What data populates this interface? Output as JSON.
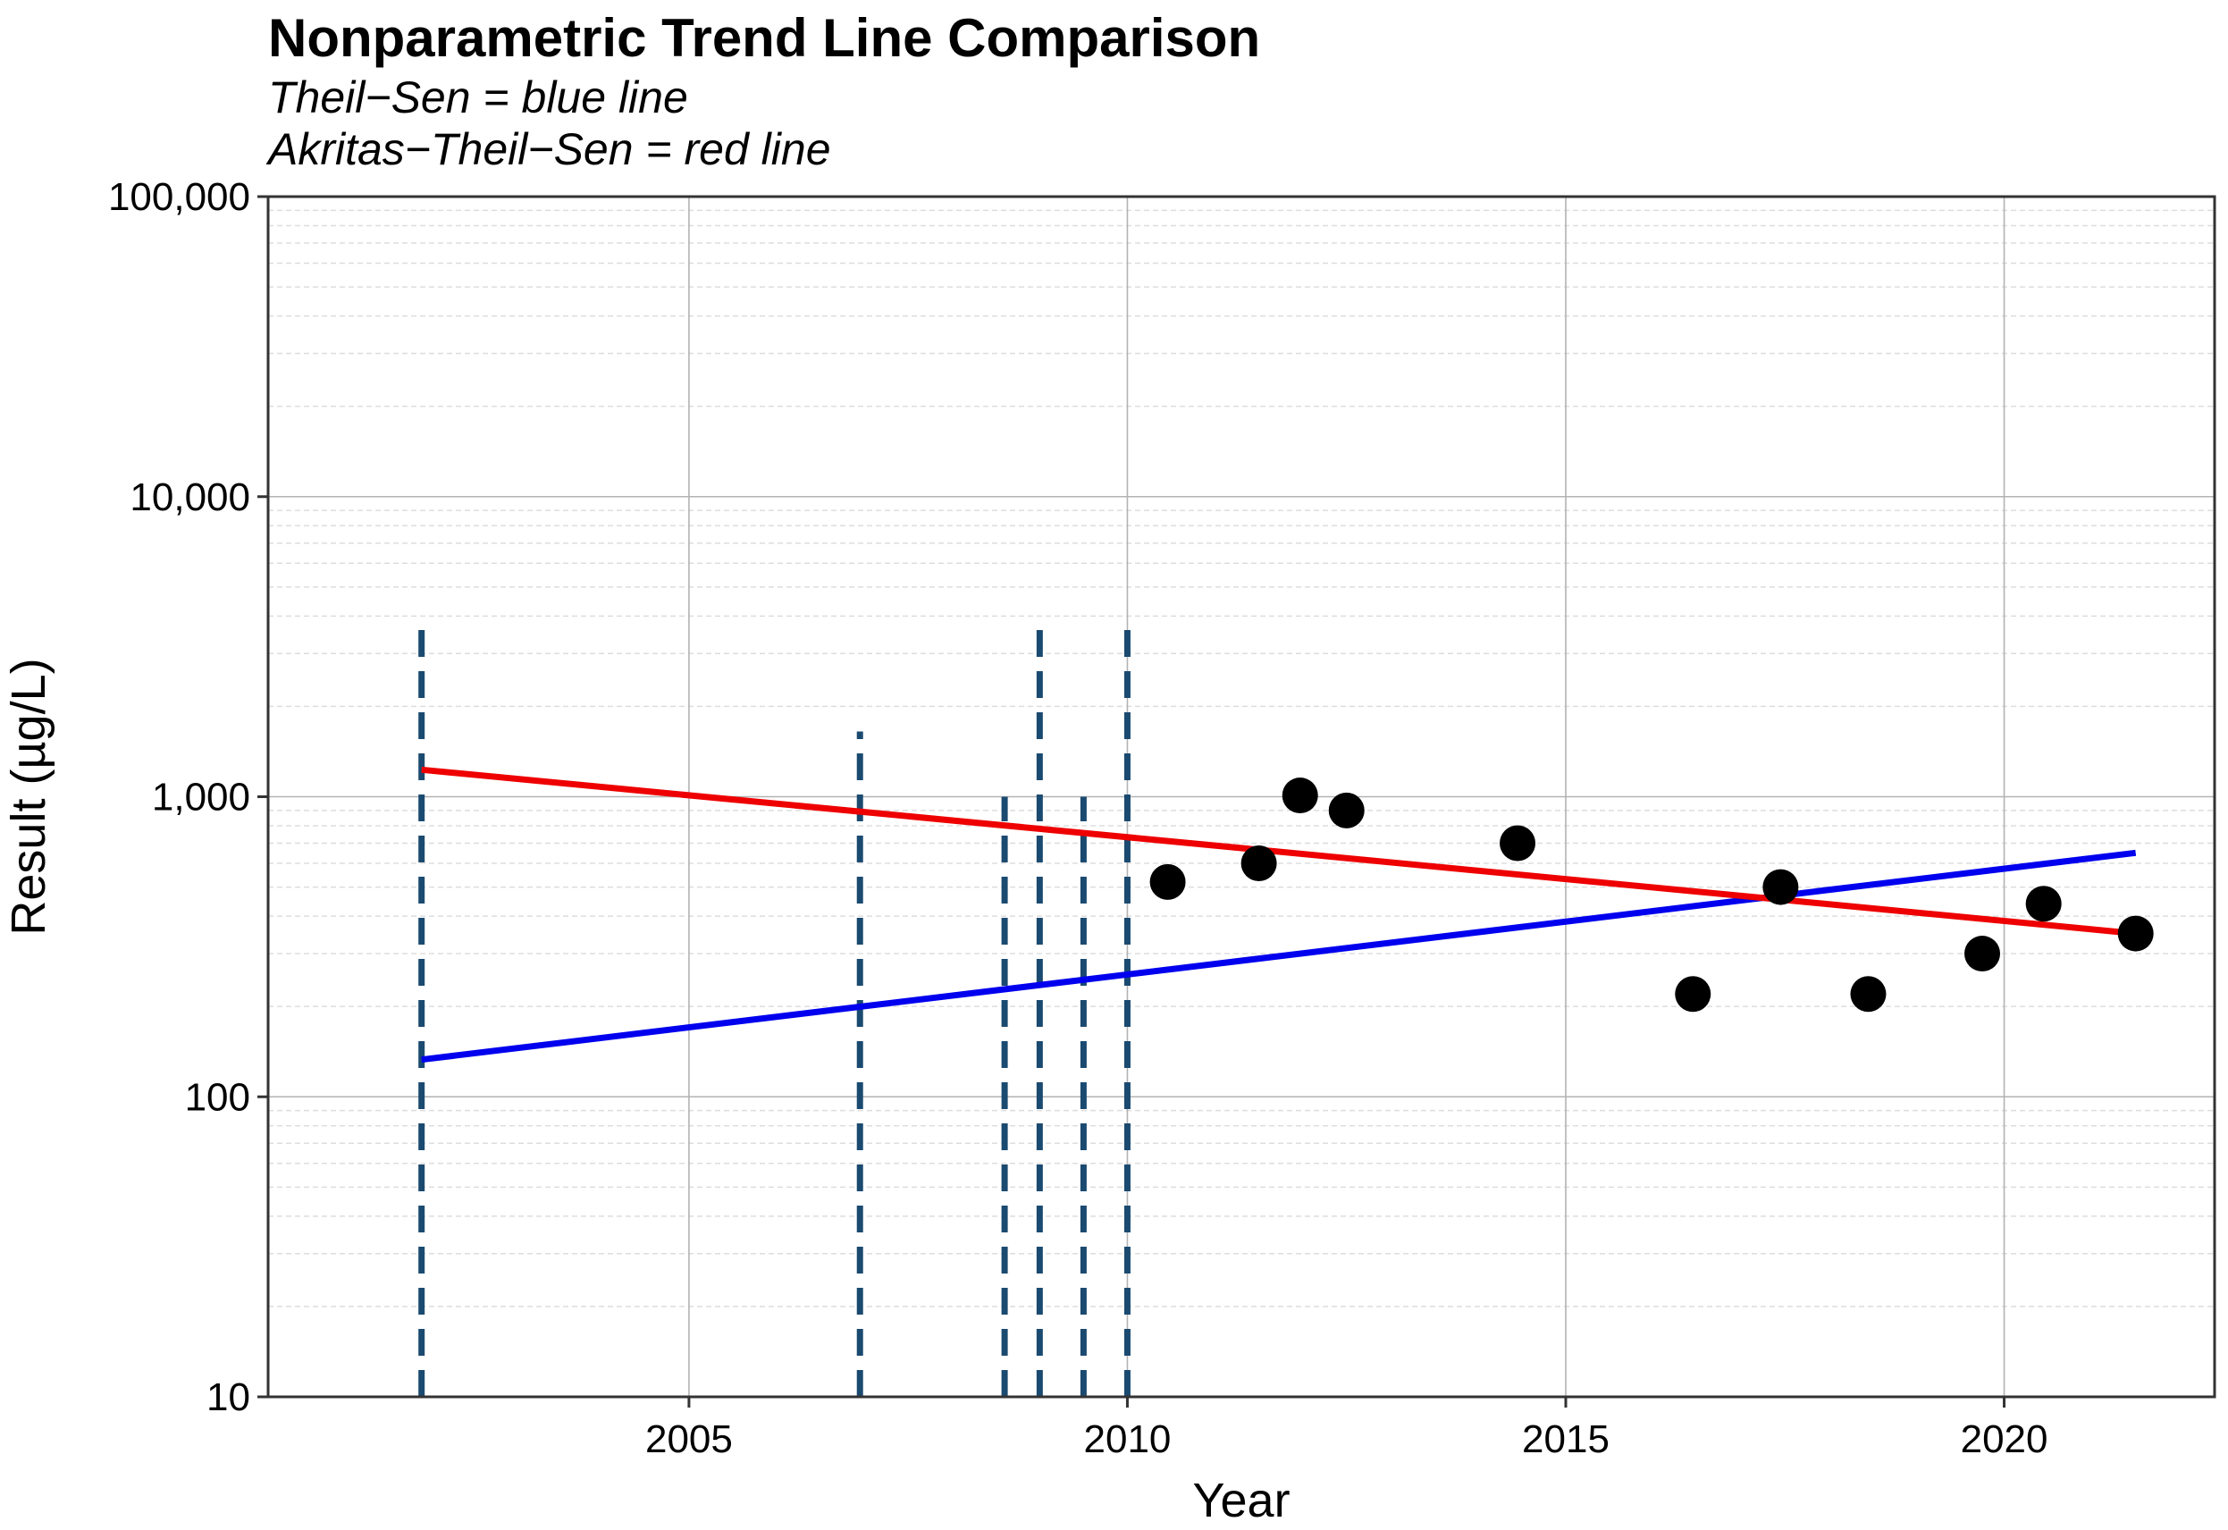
{
  "chart_data": {
    "type": "scatter",
    "title": "Nonparametric Trend Line Comparison",
    "subtitle_lines": [
      "Theil−Sen = blue line",
      "Akritas−Theil−Sen = red line"
    ],
    "xlabel": "Year",
    "ylabel": "Result (µg/L)",
    "xlim": [
      2000.2,
      2022.4
    ],
    "ylim": [
      10,
      100000
    ],
    "y_scale": "log10",
    "x_ticks": [
      2005,
      2010,
      2015,
      2020
    ],
    "x_tick_labels": [
      "2005",
      "2010",
      "2015",
      "2020"
    ],
    "y_ticks": [
      10,
      100,
      1000,
      10000,
      100000
    ],
    "y_tick_labels": [
      "10",
      "100",
      "1,000",
      "10,000",
      "100,000"
    ],
    "grid": true,
    "detected_points": {
      "color": "#000000",
      "x": [
        2010.46,
        2011.5,
        2011.97,
        2012.5,
        2014.45,
        2016.45,
        2017.45,
        2018.45,
        2019.75,
        2020.45,
        2021.5
      ],
      "y": [
        520,
        600,
        1010,
        900,
        700,
        220,
        500,
        220,
        300,
        440,
        350
      ]
    },
    "censored_intervals": {
      "color": "#1b4a70",
      "x": [
        2001.95,
        2006.95,
        2008.6,
        2009.0,
        2009.5,
        2010.0
      ],
      "y_low": [
        10,
        10,
        10,
        10,
        10,
        10
      ],
      "y_high": [
        4000,
        1650,
        1000,
        4000,
        1000,
        4000
      ]
    },
    "series": [
      {
        "name": "Theil−Sen",
        "color": "#0000ee",
        "x": [
          2001.95,
          2021.5
        ],
        "y": [
          133,
          650
        ]
      },
      {
        "name": "Akritas−Theil−Sen",
        "color": "#ee0000",
        "x": [
          2001.95,
          2021.5
        ],
        "y": [
          1230,
          350
        ]
      }
    ]
  }
}
